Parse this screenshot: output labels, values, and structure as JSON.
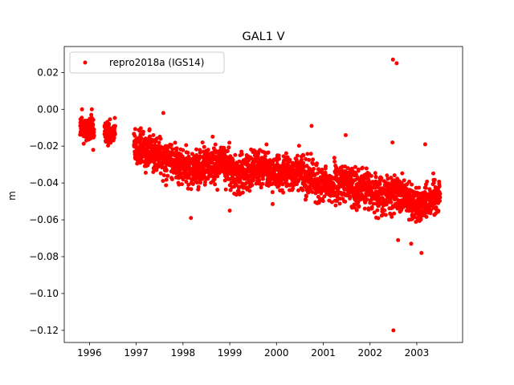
{
  "chart_data": {
    "type": "scatter",
    "title": "GAL1 V",
    "xlabel": "",
    "ylabel": "m",
    "xlim": [
      1995.46,
      2003.98
    ],
    "ylim": [
      -0.1266,
      0.0341
    ],
    "xticks": [
      1996,
      1997,
      1998,
      1999,
      2000,
      2001,
      2002,
      2003
    ],
    "yticks": [
      0.02,
      0.0,
      -0.02,
      -0.04,
      -0.06,
      -0.08,
      -0.1,
      -0.12
    ],
    "ytick_labels": [
      "0.02",
      "0.00",
      "−0.02",
      "−0.04",
      "−0.06",
      "−0.08",
      "−0.10",
      "−0.12"
    ],
    "grid": false,
    "legend": {
      "position": "top-left",
      "entries": [
        "repro2018a (IGS14)"
      ]
    },
    "series": [
      {
        "name": "repro2018a (IGS14)",
        "color": "#ff0000",
        "marker": "circle",
        "segments": [
          {
            "x0": 1995.8,
            "x1": 1996.1,
            "trend": [
              [
                1995.8,
                -0.01
              ],
              [
                1996.1,
                -0.012
              ]
            ],
            "sd": 0.005
          },
          {
            "x0": 1996.32,
            "x1": 1996.55,
            "trend": [
              [
                1996.32,
                -0.013
              ],
              [
                1996.55,
                -0.011
              ]
            ],
            "sd": 0.004
          },
          {
            "x0": 1996.95,
            "x1": 2003.5,
            "trend": [
              [
                1996.95,
                -0.02
              ],
              [
                1997.6,
                -0.026
              ],
              [
                1998.2,
                -0.033
              ],
              [
                1998.8,
                -0.028
              ],
              [
                1999.2,
                -0.036
              ],
              [
                1999.6,
                -0.03
              ],
              [
                2000.0,
                -0.036
              ],
              [
                2000.5,
                -0.034
              ],
              [
                2001.0,
                -0.042
              ],
              [
                2001.5,
                -0.04
              ],
              [
                2002.0,
                -0.044
              ],
              [
                2002.5,
                -0.046
              ],
              [
                2003.0,
                -0.052
              ],
              [
                2003.5,
                -0.046
              ]
            ],
            "sd": 0.007
          }
        ],
        "outliers": [
          {
            "x": 2002.49,
            "y": 0.027
          },
          {
            "x": 2002.57,
            "y": 0.025
          },
          {
            "x": 2002.5,
            "y": -0.12
          },
          {
            "x": 1995.84,
            "y": 0.0
          },
          {
            "x": 1996.05,
            "y": 0.0
          },
          {
            "x": 1996.08,
            "y": -0.022
          },
          {
            "x": 1997.58,
            "y": -0.002
          },
          {
            "x": 1998.17,
            "y": -0.059
          },
          {
            "x": 1999.0,
            "y": -0.055
          },
          {
            "x": 2000.75,
            "y": -0.009
          },
          {
            "x": 2001.48,
            "y": -0.014
          },
          {
            "x": 2002.48,
            "y": -0.018
          },
          {
            "x": 2003.18,
            "y": -0.019
          },
          {
            "x": 2003.1,
            "y": -0.078
          },
          {
            "x": 2002.6,
            "y": -0.071
          },
          {
            "x": 2002.88,
            "y": -0.073
          }
        ]
      }
    ]
  }
}
